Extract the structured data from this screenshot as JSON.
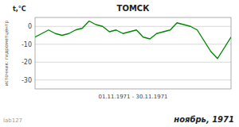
{
  "chart_data": {
    "type": "line",
    "title": "ТОМСК",
    "y_label": "t,°C",
    "x_label": "01.11.1971  -  30.11.1971",
    "annotations": [
      "ноябрь, 1971",
      "источник: гидрометцентр",
      "lab127"
    ],
    "x": [
      1,
      2,
      3,
      4,
      5,
      6,
      7,
      8,
      9,
      10,
      11,
      12,
      13,
      14,
      15,
      16,
      17,
      18,
      19,
      20,
      21,
      22,
      23,
      24,
      25,
      26,
      27,
      28,
      29,
      30
    ],
    "values": [
      -6,
      -4,
      -2,
      -4,
      -5,
      -4,
      -2,
      -1,
      3,
      1,
      0,
      -3,
      -2,
      -4,
      -3,
      -2,
      -6,
      -7,
      -4,
      -3,
      -2,
      2,
      1,
      0,
      -2,
      -8,
      -14,
      -18,
      -12,
      -6
    ],
    "color": "#008800",
    "xlim": [
      1,
      30
    ],
    "ylim": [
      -35,
      5
    ],
    "yticks": [
      0,
      -10,
      -20,
      -30
    ],
    "grid": true,
    "tick_labels": "y"
  }
}
